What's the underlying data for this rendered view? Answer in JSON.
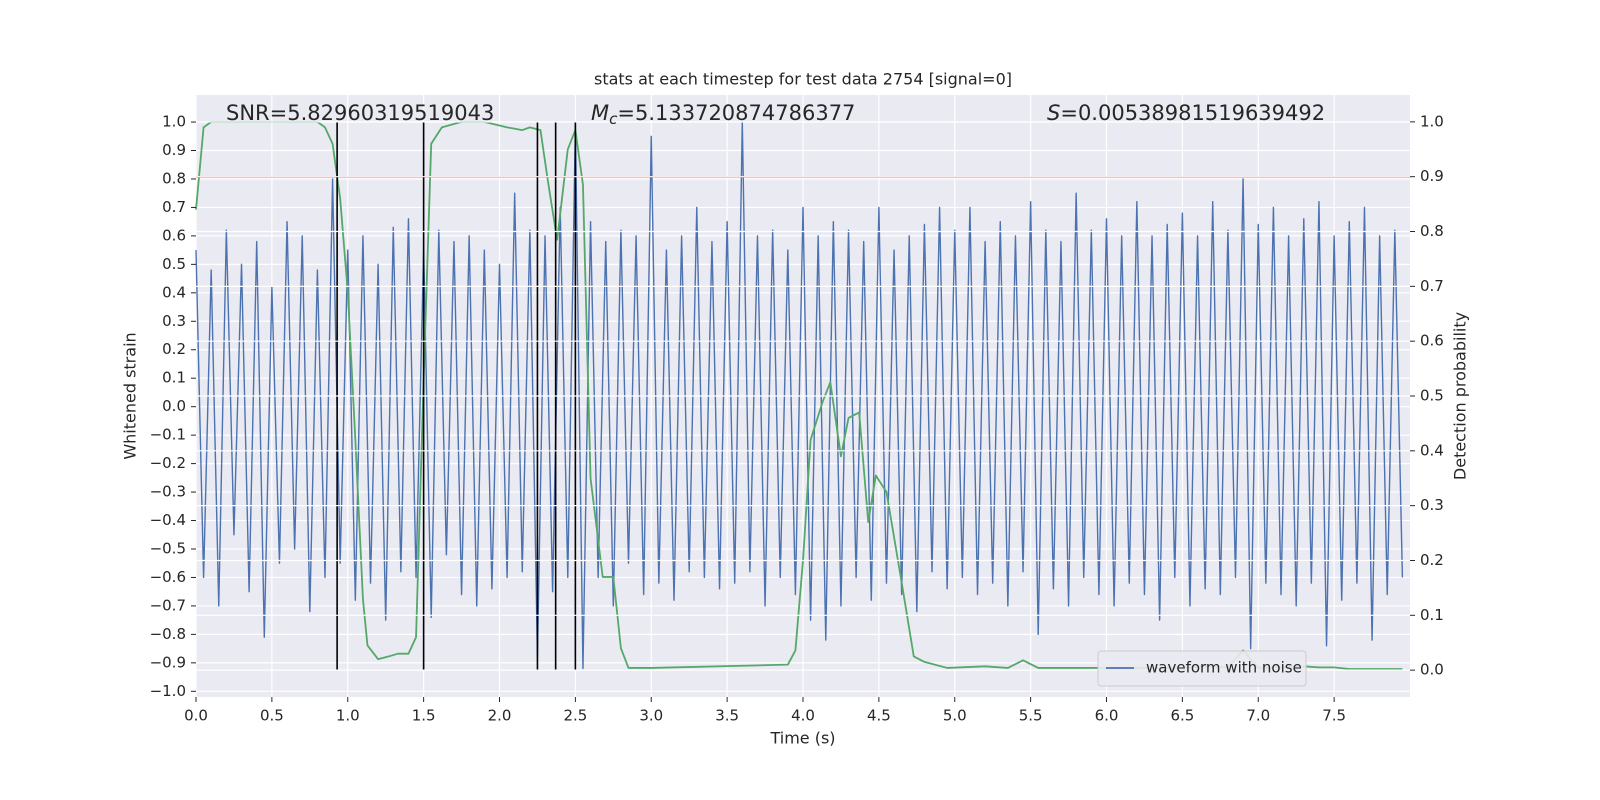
{
  "chart_data": {
    "type": "line",
    "title": "stats at each timestep for test data 2754 [signal=0]",
    "xlabel": "Time (s)",
    "ylabel": "Whitened strain",
    "y2label": "Detection probability",
    "annotations": [
      {
        "text": "SNR=5.82960319519043"
      },
      {
        "symbol": "M",
        "subscript": "c",
        "text": "=5.133720874786377"
      },
      {
        "symbol": "S",
        "text": "=0.00538981519639492"
      }
    ],
    "xlim": [
      0,
      8
    ],
    "ylim": [
      -1.02,
      1.095
    ],
    "y2lim": [
      -0.049,
      1.049
    ],
    "xticks": [
      {
        "value": 0,
        "label": "0.0"
      },
      0.5,
      {
        "value": 1,
        "label": "1.0"
      },
      1.5,
      {
        "value": 2,
        "label": "2.0"
      },
      2.5,
      {
        "value": 3,
        "label": "3.0"
      },
      3.5,
      {
        "value": 4,
        "label": "4.0"
      },
      4.5,
      {
        "value": 5,
        "label": "5.0"
      },
      5.5,
      {
        "value": 6,
        "label": "6.0"
      },
      6.5,
      {
        "value": 7,
        "label": "7.0"
      },
      7.5
    ],
    "yticks": [
      {
        "value": -1,
        "label": "−1.0"
      },
      {
        "value": -0.9,
        "label": "−0.9"
      },
      {
        "value": -0.8,
        "label": "−0.8"
      },
      {
        "value": -0.7,
        "label": "−0.7"
      },
      {
        "value": -0.6,
        "label": "−0.6"
      },
      {
        "value": -0.5,
        "label": "−0.5"
      },
      {
        "value": -0.4,
        "label": "−0.4"
      },
      {
        "value": -0.3,
        "label": "−0.3"
      },
      {
        "value": -0.2,
        "label": "−0.2"
      },
      {
        "value": -0.1,
        "label": "−0.1"
      },
      {
        "value": 0,
        "label": "0.0"
      },
      0.1,
      0.2,
      0.3,
      0.4,
      0.5,
      0.6,
      0.7,
      0.8,
      0.9,
      {
        "value": 1,
        "label": "1.0"
      }
    ],
    "y2ticks": [
      {
        "value": 0,
        "label": "0.0"
      },
      0.1,
      0.2,
      0.3,
      0.4,
      0.5,
      0.6,
      0.7,
      0.8,
      0.9,
      {
        "value": 1,
        "label": "1.0"
      }
    ],
    "grid": true,
    "legend": "lower right",
    "threshold": {
      "value": 0.9,
      "axis": "y2",
      "color": "#c44e52"
    },
    "vlines": {
      "x": [
        0.93,
        1.5,
        2.25,
        2.37,
        2.5
      ],
      "span": [
        0,
        1
      ],
      "axis": "y2",
      "color": "#000000"
    },
    "series": [
      {
        "name": "waveform with noise",
        "color": "#4c72b0",
        "x": [
          0,
          0.05,
          0.1,
          0.15,
          0.2,
          0.25,
          0.3,
          0.35,
          0.4,
          0.45,
          0.5,
          0.55,
          0.6,
          0.65,
          0.7,
          0.75,
          0.8,
          0.85,
          0.9,
          0.95,
          1,
          1.05,
          1.1,
          1.15,
          1.2,
          1.25,
          1.3,
          1.35,
          1.4,
          1.45,
          1.5,
          1.55,
          1.6,
          1.65,
          1.7,
          1.75,
          1.8,
          1.85,
          1.9,
          1.95,
          2,
          2.05,
          2.1,
          2.15,
          2.2,
          2.25,
          2.3,
          2.35,
          2.4,
          2.45,
          2.5,
          2.55,
          2.6,
          2.65,
          2.7,
          2.75,
          2.8,
          2.85,
          2.9,
          2.95,
          3,
          3.05,
          3.1,
          3.15,
          3.2,
          3.25,
          3.3,
          3.35,
          3.4,
          3.45,
          3.5,
          3.55,
          3.6,
          3.65,
          3.7,
          3.75,
          3.8,
          3.85,
          3.9,
          3.95,
          4,
          4.05,
          4.1,
          4.15,
          4.2,
          4.25,
          4.3,
          4.35,
          4.4,
          4.45,
          4.5,
          4.55,
          4.6,
          4.65,
          4.7,
          4.75,
          4.8,
          4.85,
          4.9,
          4.95,
          5,
          5.05,
          5.1,
          5.15,
          5.2,
          5.25,
          5.3,
          5.35,
          5.4,
          5.45,
          5.5,
          5.55,
          5.6,
          5.65,
          5.7,
          5.75,
          5.8,
          5.85,
          5.9,
          5.95,
          6,
          6.05,
          6.1,
          6.15,
          6.2,
          6.25,
          6.3,
          6.35,
          6.4,
          6.45,
          6.5,
          6.55,
          6.6,
          6.65,
          6.7,
          6.75,
          6.8,
          6.85,
          6.9,
          6.95,
          7,
          7.05,
          7.1,
          7.15,
          7.2,
          7.25,
          7.3,
          7.35,
          7.4,
          7.45,
          7.5,
          7.55,
          7.6,
          7.65,
          7.7,
          7.75,
          7.8,
          7.85,
          7.9,
          7.95
        ],
        "values": [
          0.55,
          -0.6,
          0.48,
          -0.7,
          0.62,
          -0.45,
          0.5,
          -0.65,
          0.58,
          -0.81,
          0.42,
          -0.55,
          0.65,
          -0.5,
          0.6,
          -0.72,
          0.48,
          -0.6,
          0.8,
          -0.55,
          0.55,
          -0.68,
          0.6,
          -0.62,
          0.5,
          -0.75,
          0.63,
          -0.58,
          0.66,
          -0.6,
          0.55,
          -0.74,
          0.62,
          -0.52,
          0.58,
          -0.66,
          0.6,
          -0.7,
          0.55,
          -0.64,
          0.5,
          -0.6,
          0.75,
          -0.58,
          0.62,
          -0.88,
          0.6,
          -0.65,
          0.7,
          -0.6,
          0.99,
          -0.92,
          0.65,
          -0.6,
          0.58,
          -0.7,
          0.62,
          -0.55,
          0.6,
          -0.66,
          0.95,
          -0.62,
          0.55,
          -0.68,
          0.6,
          -0.58,
          0.7,
          -0.6,
          0.58,
          -0.64,
          0.65,
          -0.62,
          1.0,
          -0.58,
          0.6,
          -0.7,
          0.62,
          -0.6,
          0.55,
          -0.66,
          0.7,
          -0.75,
          0.6,
          -0.82,
          0.65,
          -0.7,
          0.62,
          -0.6,
          0.58,
          -0.68,
          0.7,
          -0.62,
          0.55,
          -0.66,
          0.6,
          -0.72,
          0.64,
          -0.58,
          0.7,
          -0.64,
          0.62,
          -0.6,
          0.7,
          -0.66,
          0.58,
          -0.62,
          0.65,
          -0.7,
          0.6,
          -0.58,
          0.72,
          -0.8,
          0.62,
          -0.64,
          0.58,
          -0.7,
          0.75,
          -0.6,
          0.62,
          -0.66,
          0.66,
          -0.7,
          0.6,
          -0.62,
          0.72,
          -0.66,
          0.6,
          -0.75,
          0.64,
          -0.6,
          0.68,
          -0.7,
          0.6,
          -0.64,
          0.72,
          -0.66,
          0.62,
          -0.6,
          0.8,
          -0.85,
          0.64,
          -0.62,
          0.7,
          -0.66,
          0.6,
          -0.7,
          0.66,
          -0.62,
          0.72,
          -0.84,
          0.6,
          -0.68,
          0.65,
          -0.62,
          0.7,
          -0.82,
          0.6,
          -0.66,
          0.62,
          -0.6
        ]
      },
      {
        "color": "#55a868",
        "axis": "y2",
        "x": [
          0,
          0.05,
          0.1,
          0.8,
          0.85,
          0.9,
          0.95,
          1,
          1.05,
          1.1,
          1.13,
          1.2,
          1.27,
          1.33,
          1.4,
          1.45,
          1.5,
          1.55,
          1.62,
          1.75,
          1.9,
          2.05,
          2.15,
          2.2,
          2.27,
          2.32,
          2.38,
          2.45,
          2.5,
          2.55,
          2.6,
          2.68,
          2.75,
          2.8,
          2.85,
          3,
          3.9,
          3.95,
          4,
          4.05,
          4.13,
          4.18,
          4.25,
          4.3,
          4.37,
          4.43,
          4.48,
          4.55,
          4.65,
          4.73,
          4.8,
          4.95,
          5.2,
          5.35,
          5.45,
          5.55,
          6.5,
          6.65,
          6.8,
          6.9,
          7,
          7.3,
          7.4,
          7.5,
          7.6,
          7.95
        ],
        "values": [
          0.84,
          0.99,
          1,
          1,
          0.99,
          0.96,
          0.86,
          0.69,
          0.42,
          0.13,
          0.045,
          0.02,
          0.025,
          0.03,
          0.03,
          0.06,
          0.53,
          0.96,
          0.99,
          1,
          1,
          0.99,
          0.985,
          0.99,
          0.985,
          0.89,
          0.785,
          0.95,
          0.985,
          0.885,
          0.35,
          0.17,
          0.17,
          0.04,
          0.004,
          0.004,
          0.01,
          0.036,
          0.2,
          0.42,
          0.49,
          0.525,
          0.39,
          0.46,
          0.47,
          0.27,
          0.355,
          0.325,
          0.16,
          0.025,
          0.015,
          0.004,
          0.007,
          0.004,
          0.018,
          0.004,
          0.004,
          0.007,
          0.005,
          0.036,
          0.004,
          0.007,
          0.005,
          0.005,
          0.002,
          0.002
        ]
      }
    ]
  }
}
